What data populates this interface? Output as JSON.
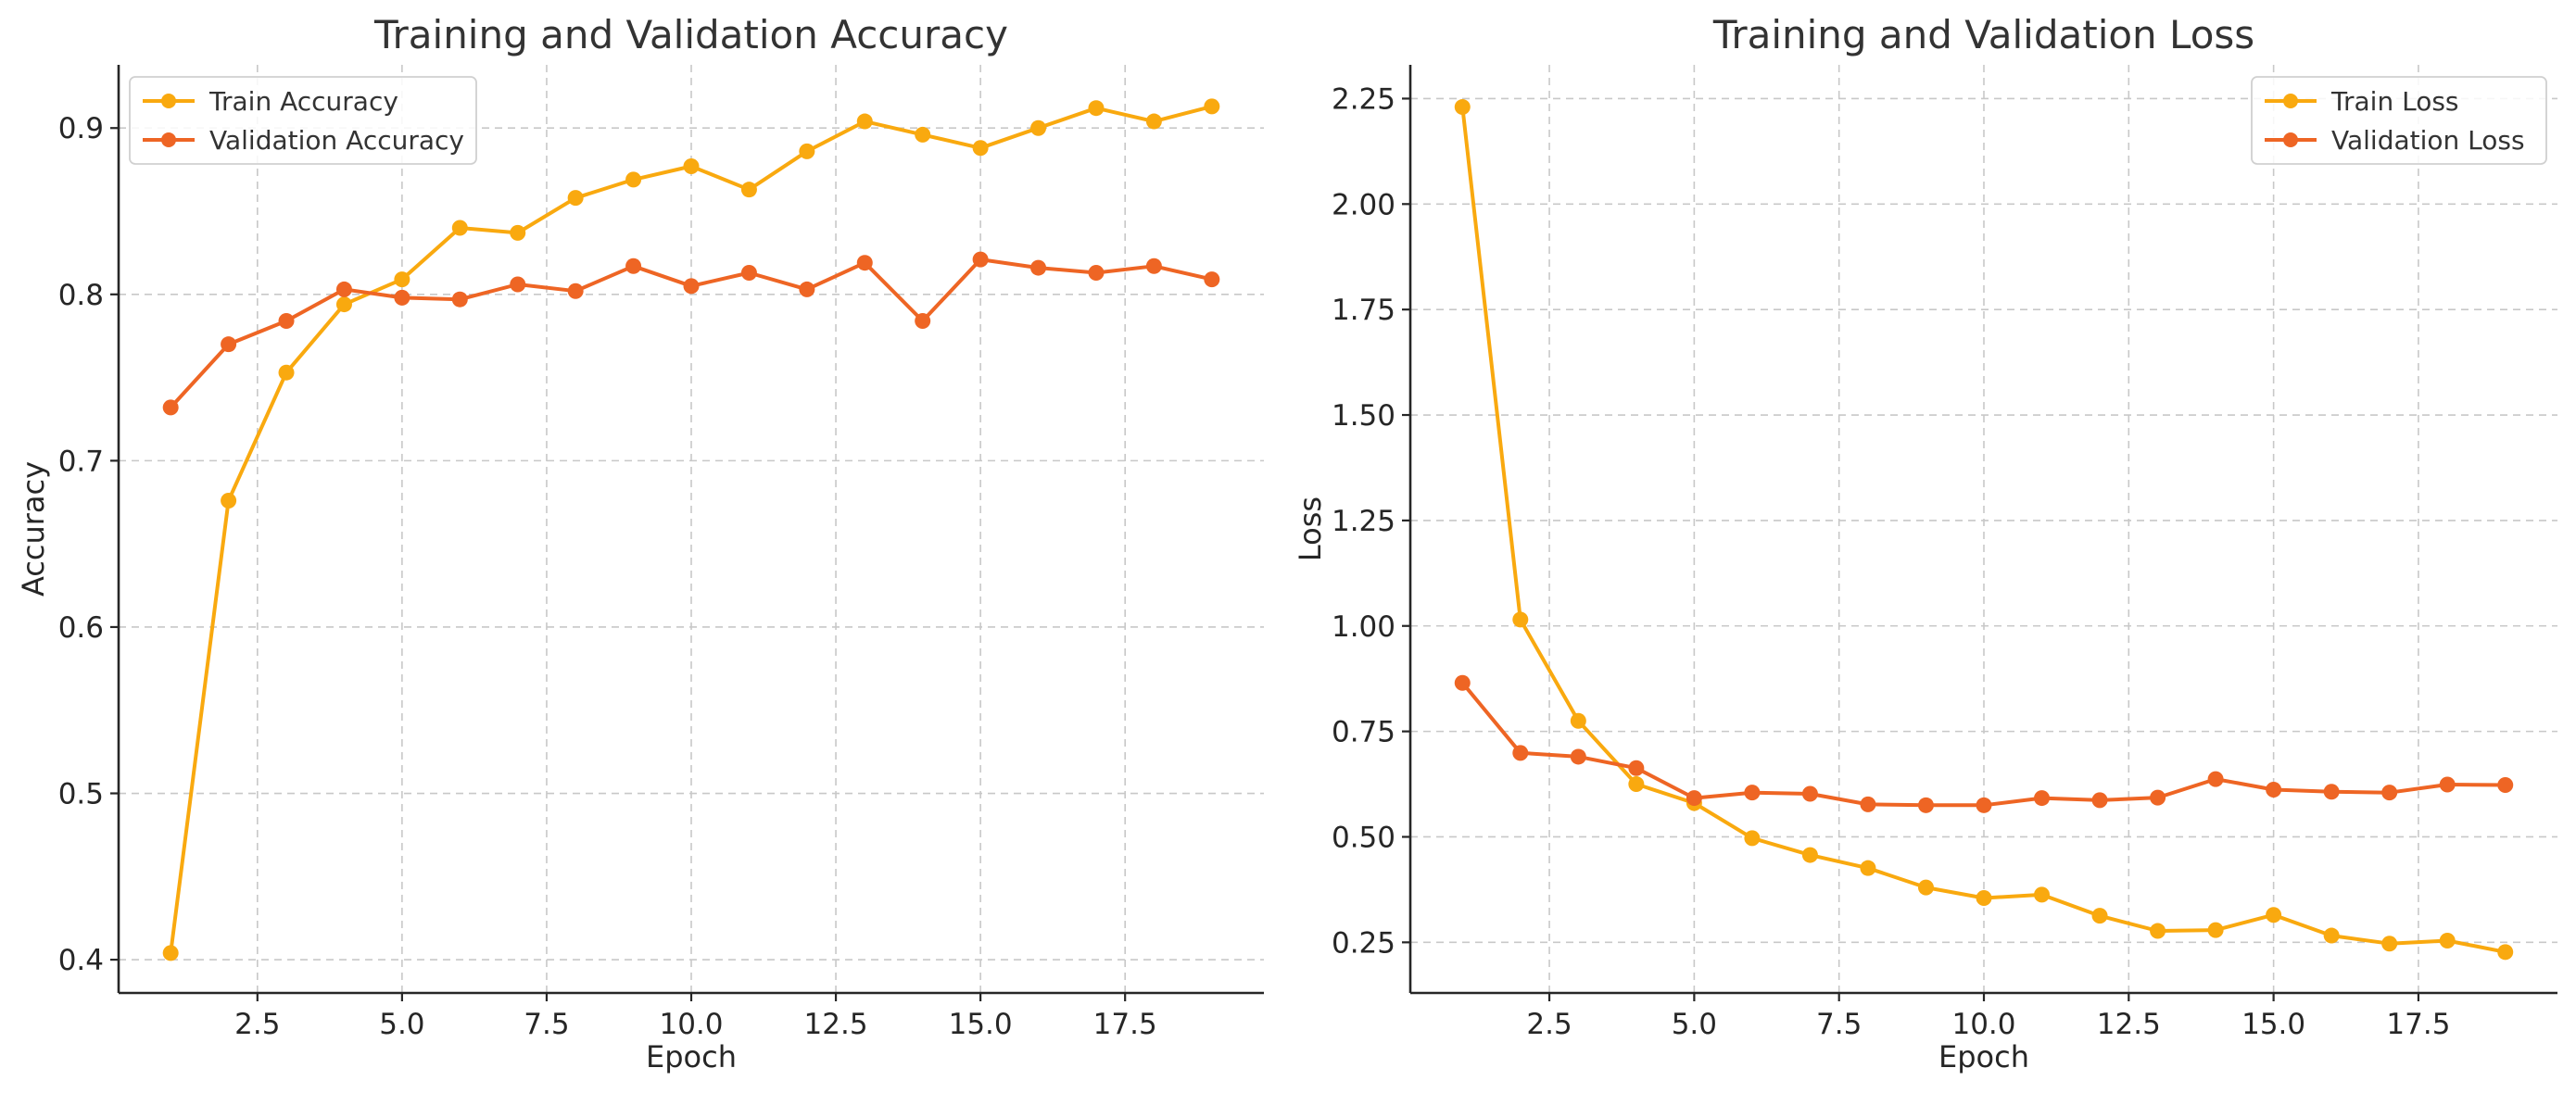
{
  "chart_data": [
    {
      "type": "line",
      "title": "Training and Validation Accuracy",
      "xlabel": "Epoch",
      "ylabel": "Accuracy",
      "xlim": [
        0.1,
        19.9
      ],
      "ylim": [
        0.38,
        0.938
      ],
      "xticks": [
        2.5,
        5.0,
        7.5,
        10.0,
        12.5,
        15.0,
        17.5
      ],
      "xtick_labels": [
        "2.5",
        "5.0",
        "7.5",
        "10.0",
        "12.5",
        "15.0",
        "17.5"
      ],
      "yticks": [
        0.4,
        0.5,
        0.6,
        0.7,
        0.8,
        0.9
      ],
      "ytick_labels": [
        "0.4",
        "0.5",
        "0.6",
        "0.7",
        "0.8",
        "0.9"
      ],
      "grid": true,
      "legend_position": "upper-left",
      "x": [
        1,
        2,
        3,
        4,
        5,
        6,
        7,
        8,
        9,
        10,
        11,
        12,
        13,
        14,
        15,
        16,
        17,
        18,
        19
      ],
      "series": [
        {
          "name": "Train Accuracy",
          "color": "#f9a90f",
          "values": [
            0.404,
            0.676,
            0.753,
            0.794,
            0.809,
            0.84,
            0.837,
            0.858,
            0.869,
            0.877,
            0.863,
            0.886,
            0.904,
            0.896,
            0.888,
            0.9,
            0.912,
            0.904,
            0.913
          ]
        },
        {
          "name": "Validation Accuracy",
          "color": "#ee6524",
          "values": [
            0.732,
            0.77,
            0.784,
            0.803,
            0.798,
            0.797,
            0.806,
            0.802,
            0.817,
            0.805,
            0.813,
            0.803,
            0.819,
            0.784,
            0.821,
            0.816,
            0.813,
            0.817,
            0.809
          ]
        }
      ]
    },
    {
      "type": "line",
      "title": "Training and Validation Loss",
      "xlabel": "Epoch",
      "ylabel": "Loss",
      "xlim": [
        0.1,
        19.9
      ],
      "ylim": [
        0.13,
        2.33
      ],
      "xticks": [
        2.5,
        5.0,
        7.5,
        10.0,
        12.5,
        15.0,
        17.5
      ],
      "xtick_labels": [
        "2.5",
        "5.0",
        "7.5",
        "10.0",
        "12.5",
        "15.0",
        "17.5"
      ],
      "yticks": [
        0.25,
        0.5,
        0.75,
        1.0,
        1.25,
        1.5,
        1.75,
        2.0,
        2.25
      ],
      "ytick_labels": [
        "0.25",
        "0.50",
        "0.75",
        "1.00",
        "1.25",
        "1.50",
        "1.75",
        "2.00",
        "2.25"
      ],
      "grid": true,
      "legend_position": "upper-right",
      "x": [
        1,
        2,
        3,
        4,
        5,
        6,
        7,
        8,
        9,
        10,
        11,
        12,
        13,
        14,
        15,
        16,
        17,
        18,
        19
      ],
      "series": [
        {
          "name": "Train Loss",
          "color": "#f9a90f",
          "values": [
            2.23,
            1.015,
            0.775,
            0.625,
            0.58,
            0.497,
            0.457,
            0.426,
            0.38,
            0.355,
            0.363,
            0.313,
            0.277,
            0.279,
            0.315,
            0.266,
            0.247,
            0.254,
            0.227
          ]
        },
        {
          "name": "Validation Loss",
          "color": "#ee6524",
          "values": [
            0.865,
            0.699,
            0.69,
            0.663,
            0.592,
            0.605,
            0.602,
            0.577,
            0.575,
            0.575,
            0.592,
            0.587,
            0.593,
            0.637,
            0.612,
            0.607,
            0.605,
            0.624,
            0.623
          ]
        }
      ]
    }
  ]
}
